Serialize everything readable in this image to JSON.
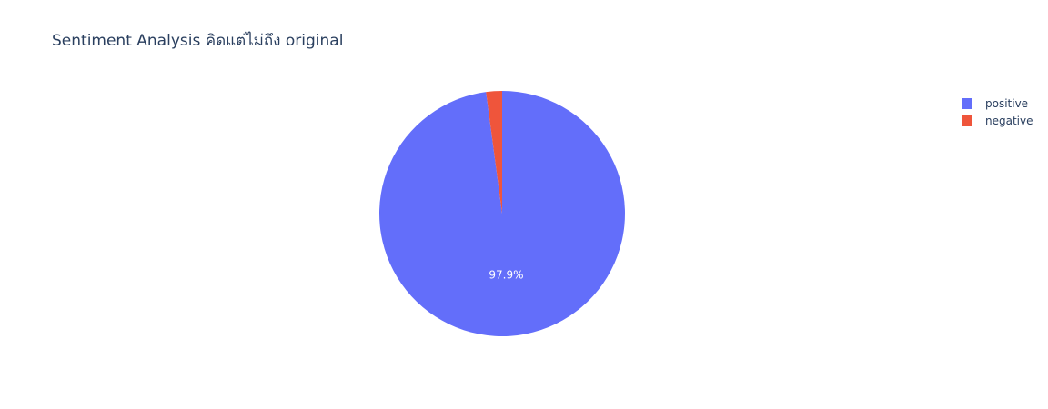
{
  "chart_data": {
    "type": "pie",
    "title": "Sentiment Analysis คิดแต่ไม่ถึง original",
    "categories": [
      "positive",
      "negative"
    ],
    "values": [
      97.9,
      2.1
    ],
    "colors": [
      "#636efa",
      "#ef553b"
    ],
    "text_labels": [
      "97.9%",
      ""
    ],
    "legend": {
      "placement": "top-right",
      "entries": [
        "positive",
        "negative"
      ]
    },
    "start_angle_deg": 90,
    "direction": "clockwise"
  }
}
